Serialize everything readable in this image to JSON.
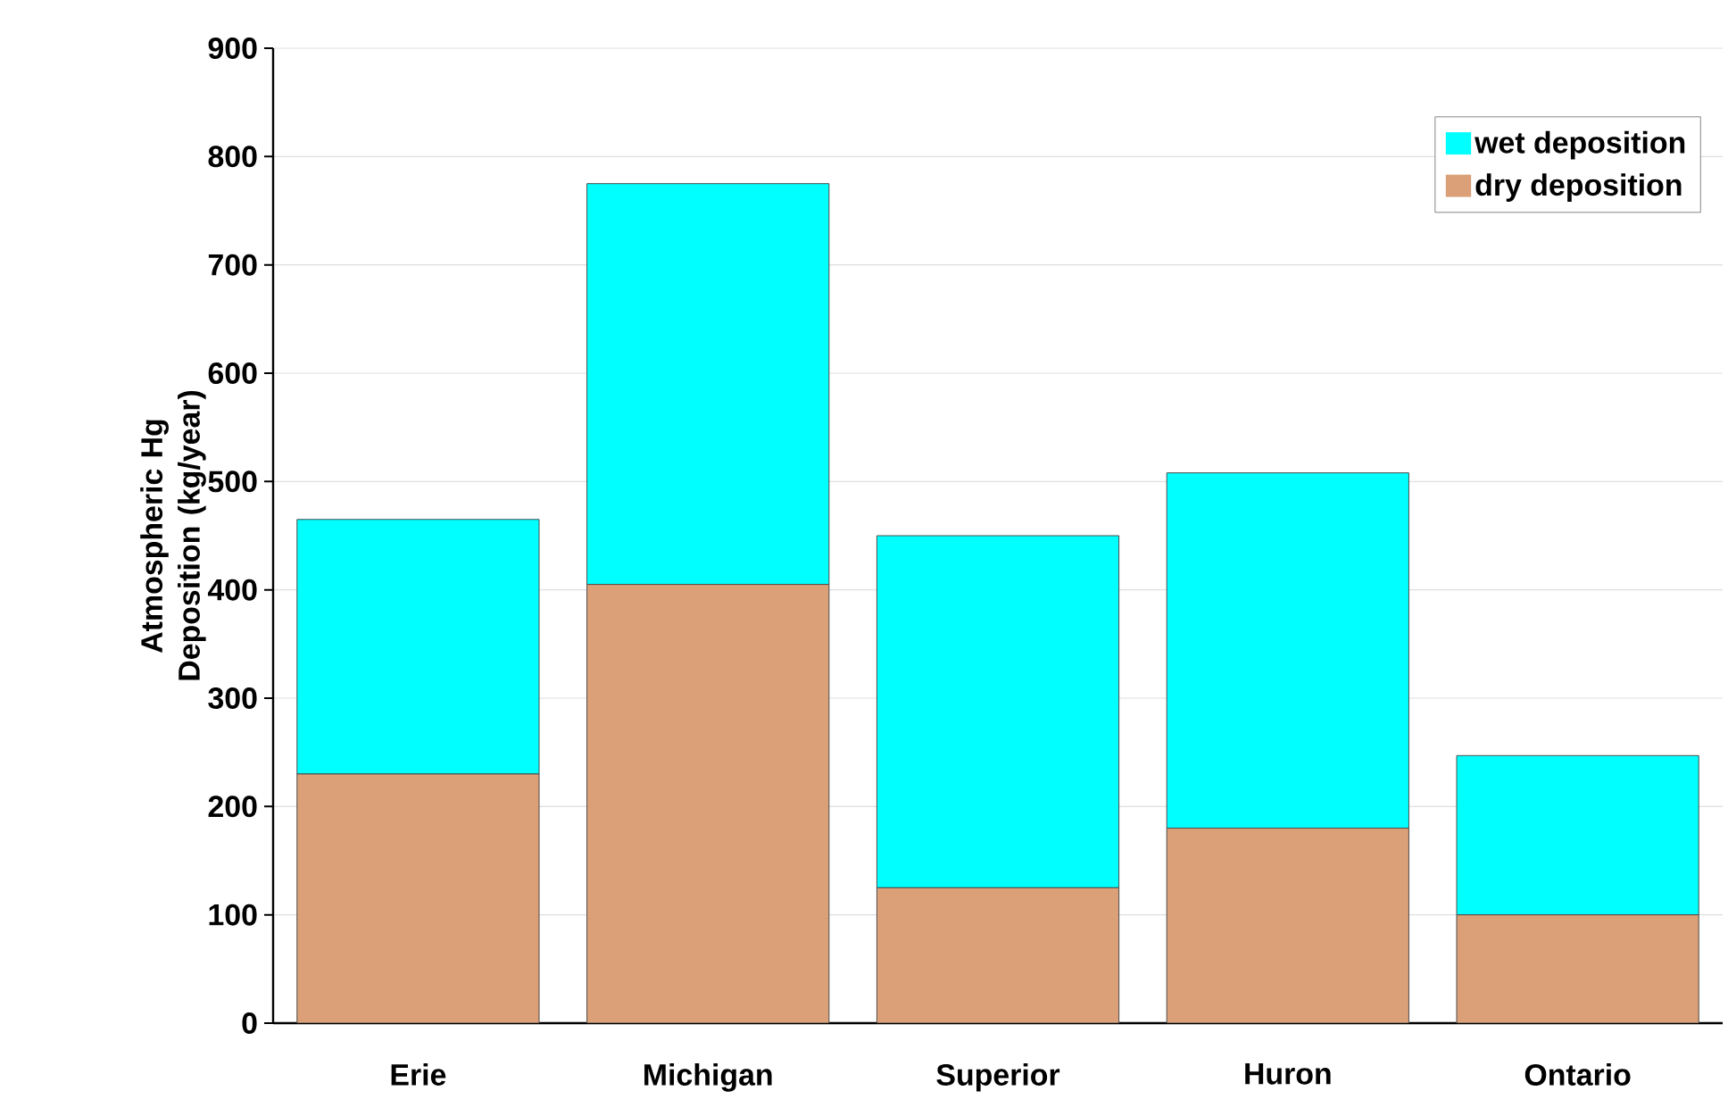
{
  "chart_data": {
    "type": "bar",
    "stacked": true,
    "categories": [
      "Erie",
      "Michigan",
      "Superior",
      "Huron",
      "Ontario"
    ],
    "series": [
      {
        "name": "dry deposition",
        "color": "#dba077",
        "values": [
          230,
          405,
          125,
          180,
          100
        ]
      },
      {
        "name": "wet deposition",
        "color": "#00ffff",
        "values": [
          235,
          370,
          325,
          328,
          147
        ]
      }
    ],
    "ylabel": "Atmospheric Hg Deposition (kg/year)",
    "ylim": [
      0,
      900
    ],
    "yticks": [
      0,
      100,
      200,
      300,
      400,
      500,
      600,
      700,
      800,
      900
    ],
    "grid": "y",
    "legend": "top right"
  }
}
